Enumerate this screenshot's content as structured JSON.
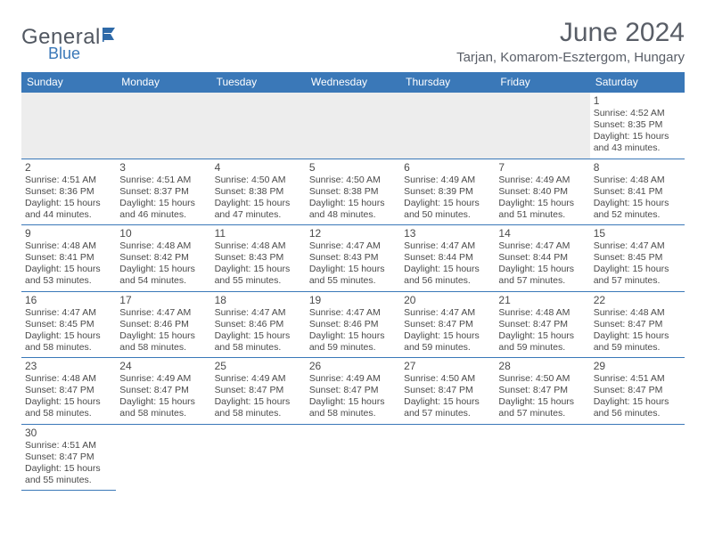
{
  "logo": {
    "main": "General",
    "sub": "Blue"
  },
  "header": {
    "month_year": "June 2024",
    "location": "Tarjan, Komarom-Esztergom, Hungary"
  },
  "colors": {
    "header_bg": "#3a78b8",
    "header_fg": "#ffffff",
    "rule": "#3a78b8",
    "blank_bg": "#ededed",
    "text": "#4a4a4a",
    "logo_main": "#515761",
    "logo_sub": "#3a78b8"
  },
  "weekdays": [
    "Sunday",
    "Monday",
    "Tuesday",
    "Wednesday",
    "Thursday",
    "Friday",
    "Saturday"
  ],
  "first_weekday_index": 6,
  "days_in_month": 30,
  "days": {
    "1": {
      "sunrise": "4:52 AM",
      "sunset": "8:35 PM",
      "daylight": "15 hours and 43 minutes."
    },
    "2": {
      "sunrise": "4:51 AM",
      "sunset": "8:36 PM",
      "daylight": "15 hours and 44 minutes."
    },
    "3": {
      "sunrise": "4:51 AM",
      "sunset": "8:37 PM",
      "daylight": "15 hours and 46 minutes."
    },
    "4": {
      "sunrise": "4:50 AM",
      "sunset": "8:38 PM",
      "daylight": "15 hours and 47 minutes."
    },
    "5": {
      "sunrise": "4:50 AM",
      "sunset": "8:38 PM",
      "daylight": "15 hours and 48 minutes."
    },
    "6": {
      "sunrise": "4:49 AM",
      "sunset": "8:39 PM",
      "daylight": "15 hours and 50 minutes."
    },
    "7": {
      "sunrise": "4:49 AM",
      "sunset": "8:40 PM",
      "daylight": "15 hours and 51 minutes."
    },
    "8": {
      "sunrise": "4:48 AM",
      "sunset": "8:41 PM",
      "daylight": "15 hours and 52 minutes."
    },
    "9": {
      "sunrise": "4:48 AM",
      "sunset": "8:41 PM",
      "daylight": "15 hours and 53 minutes."
    },
    "10": {
      "sunrise": "4:48 AM",
      "sunset": "8:42 PM",
      "daylight": "15 hours and 54 minutes."
    },
    "11": {
      "sunrise": "4:48 AM",
      "sunset": "8:43 PM",
      "daylight": "15 hours and 55 minutes."
    },
    "12": {
      "sunrise": "4:47 AM",
      "sunset": "8:43 PM",
      "daylight": "15 hours and 55 minutes."
    },
    "13": {
      "sunrise": "4:47 AM",
      "sunset": "8:44 PM",
      "daylight": "15 hours and 56 minutes."
    },
    "14": {
      "sunrise": "4:47 AM",
      "sunset": "8:44 PM",
      "daylight": "15 hours and 57 minutes."
    },
    "15": {
      "sunrise": "4:47 AM",
      "sunset": "8:45 PM",
      "daylight": "15 hours and 57 minutes."
    },
    "16": {
      "sunrise": "4:47 AM",
      "sunset": "8:45 PM",
      "daylight": "15 hours and 58 minutes."
    },
    "17": {
      "sunrise": "4:47 AM",
      "sunset": "8:46 PM",
      "daylight": "15 hours and 58 minutes."
    },
    "18": {
      "sunrise": "4:47 AM",
      "sunset": "8:46 PM",
      "daylight": "15 hours and 58 minutes."
    },
    "19": {
      "sunrise": "4:47 AM",
      "sunset": "8:46 PM",
      "daylight": "15 hours and 59 minutes."
    },
    "20": {
      "sunrise": "4:47 AM",
      "sunset": "8:47 PM",
      "daylight": "15 hours and 59 minutes."
    },
    "21": {
      "sunrise": "4:48 AM",
      "sunset": "8:47 PM",
      "daylight": "15 hours and 59 minutes."
    },
    "22": {
      "sunrise": "4:48 AM",
      "sunset": "8:47 PM",
      "daylight": "15 hours and 59 minutes."
    },
    "23": {
      "sunrise": "4:48 AM",
      "sunset": "8:47 PM",
      "daylight": "15 hours and 58 minutes."
    },
    "24": {
      "sunrise": "4:49 AM",
      "sunset": "8:47 PM",
      "daylight": "15 hours and 58 minutes."
    },
    "25": {
      "sunrise": "4:49 AM",
      "sunset": "8:47 PM",
      "daylight": "15 hours and 58 minutes."
    },
    "26": {
      "sunrise": "4:49 AM",
      "sunset": "8:47 PM",
      "daylight": "15 hours and 58 minutes."
    },
    "27": {
      "sunrise": "4:50 AM",
      "sunset": "8:47 PM",
      "daylight": "15 hours and 57 minutes."
    },
    "28": {
      "sunrise": "4:50 AM",
      "sunset": "8:47 PM",
      "daylight": "15 hours and 57 minutes."
    },
    "29": {
      "sunrise": "4:51 AM",
      "sunset": "8:47 PM",
      "daylight": "15 hours and 56 minutes."
    },
    "30": {
      "sunrise": "4:51 AM",
      "sunset": "8:47 PM",
      "daylight": "15 hours and 55 minutes."
    }
  },
  "labels": {
    "sunrise": "Sunrise:",
    "sunset": "Sunset:",
    "daylight": "Daylight:"
  }
}
